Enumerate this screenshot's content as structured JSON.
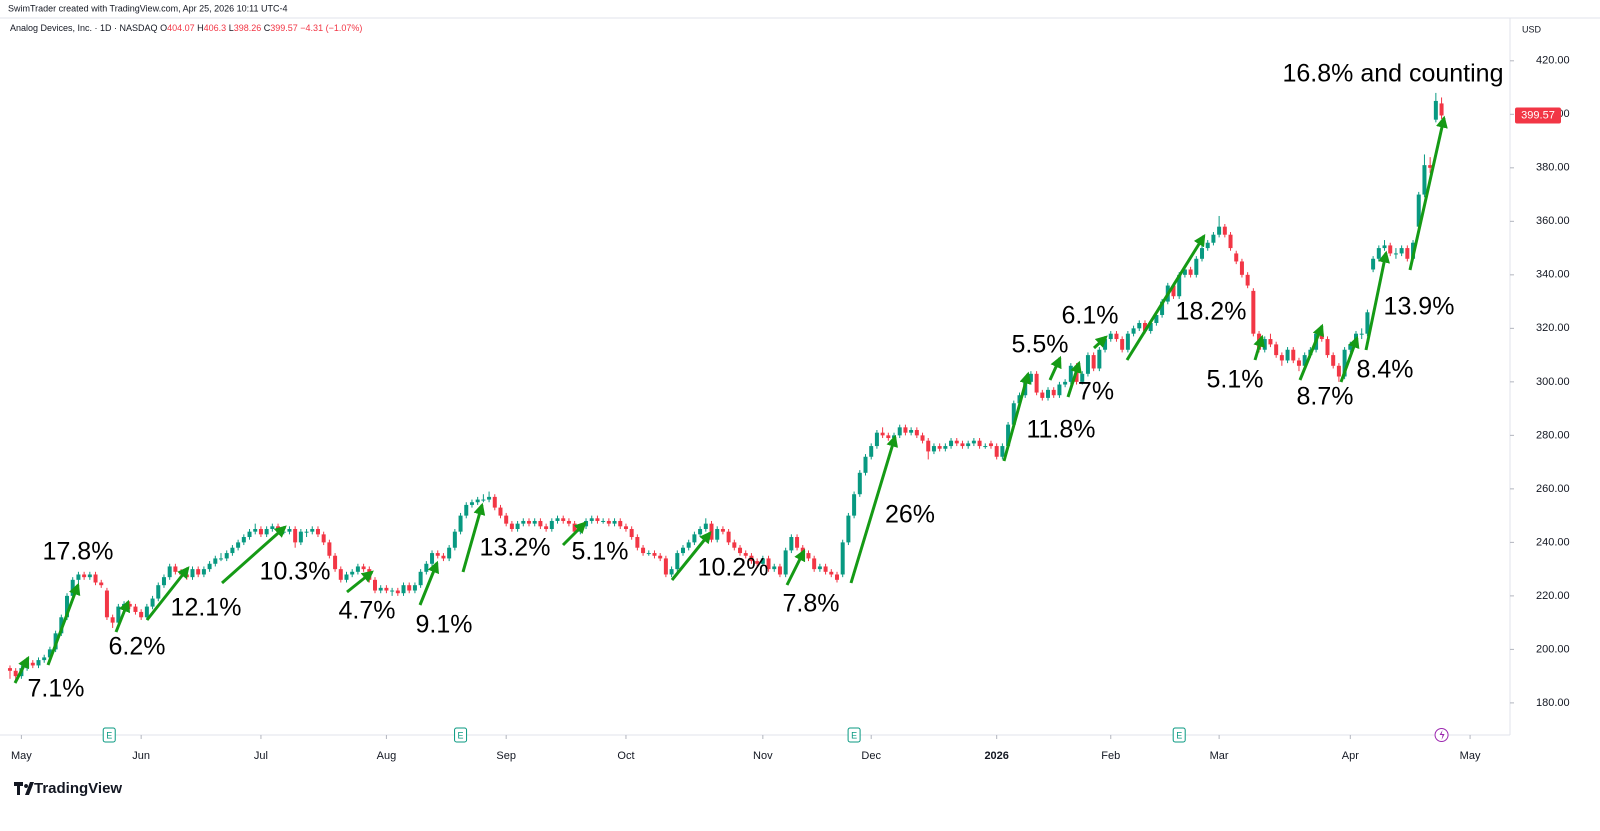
{
  "chart_data": {
    "type": "candlestick",
    "credit": "SwimTrader created with TradingView.com, Apr 25, 2026 10:11 UTC-4",
    "symbol": "Analog Devices, Inc. · 1D · NASDAQ",
    "ohlc_labels": [
      "O",
      "H",
      "L",
      "C"
    ],
    "change": "−4.31 (−1.07%)",
    "currency": "USD",
    "brand": "TradingView",
    "earnings_label": "E",
    "up_color": "#089981",
    "down_color": "#f23645",
    "arrow_color": "#159a15",
    "grid": false,
    "ylim": [
      168,
      436
    ],
    "yticks": [
      {
        "value": 180,
        "label": "180.00"
      },
      {
        "value": 200,
        "label": "200.00"
      },
      {
        "value": 220,
        "label": "220.00"
      },
      {
        "value": 240,
        "label": "240.00"
      },
      {
        "value": 260,
        "label": "260.00"
      },
      {
        "value": 280,
        "label": "280.00"
      },
      {
        "value": 300,
        "label": "300.00"
      },
      {
        "value": 320,
        "label": "320.00"
      },
      {
        "value": 340,
        "label": "340.00"
      },
      {
        "value": 360,
        "label": "360.00"
      },
      {
        "value": 380,
        "label": "380.00"
      },
      {
        "value": 400,
        "label": "400.00"
      },
      {
        "value": 420,
        "label": "420.00"
      }
    ],
    "xlim": [
      -1.75,
      263
    ],
    "xticks": [
      {
        "value": 2,
        "label": "May"
      },
      {
        "value": 23,
        "label": "Jun"
      },
      {
        "value": 44,
        "label": "Jul"
      },
      {
        "value": 66,
        "label": "Aug"
      },
      {
        "value": 87,
        "label": "Sep"
      },
      {
        "value": 108,
        "label": "Oct"
      },
      {
        "value": 132,
        "label": "Nov"
      },
      {
        "value": 151,
        "label": "Dec"
      },
      {
        "value": 173,
        "label": "2026"
      },
      {
        "value": 193,
        "label": "Feb"
      },
      {
        "value": 212,
        "label": "Mar"
      },
      {
        "value": 235,
        "label": "Apr"
      },
      {
        "value": 256,
        "label": "May"
      }
    ],
    "annotations": [
      "17.8%",
      "7.1%",
      "6.2%",
      "12.1%",
      "10.3%",
      "4.7%",
      "9.1%",
      "13.2%",
      "5.1%",
      "10.2%",
      "7.8%",
      "26%",
      "11.8%",
      "7%",
      "5.5%",
      "6.1%",
      "18.2%",
      "5.1%",
      "8.7%",
      "8.4%",
      "13.9%",
      "16.8% and counting"
    ],
    "candles": [
      [
        193,
        194,
        189,
        192
      ],
      [
        192,
        193,
        188,
        190
      ],
      [
        190,
        194,
        189,
        193
      ],
      [
        193,
        196,
        192,
        195
      ],
      [
        195,
        196,
        193,
        194
      ],
      [
        194,
        197,
        193,
        196
      ],
      [
        196,
        198,
        195,
        197
      ],
      [
        197,
        201,
        196,
        200
      ],
      [
        200,
        207,
        199,
        206
      ],
      [
        206,
        213,
        205,
        212
      ],
      [
        212,
        221,
        211,
        220
      ],
      [
        220,
        227,
        219,
        226
      ],
      [
        226,
        229,
        224,
        228
      ],
      [
        228,
        229,
        226,
        227
      ],
      [
        227,
        229,
        226,
        228
      ],
      [
        228,
        229,
        224,
        225
      ],
      [
        225,
        226,
        223,
        224
      ],
      [
        222,
        223,
        211,
        212
      ],
      [
        212,
        213,
        208,
        210
      ],
      [
        210,
        217,
        209,
        216
      ],
      [
        216,
        218,
        215,
        217
      ],
      [
        217,
        218,
        215,
        216
      ],
      [
        216,
        217,
        213,
        214
      ],
      [
        214,
        215,
        211,
        212
      ],
      [
        212,
        217,
        211,
        216
      ],
      [
        216,
        220,
        215,
        219
      ],
      [
        219,
        225,
        218,
        224
      ],
      [
        224,
        228,
        223,
        227
      ],
      [
        227,
        232,
        226,
        231
      ],
      [
        231,
        232,
        228,
        229
      ],
      [
        229,
        230,
        227,
        228
      ],
      [
        228,
        229,
        226,
        227
      ],
      [
        227,
        231,
        226,
        230
      ],
      [
        230,
        231,
        227,
        228
      ],
      [
        228,
        231,
        227,
        230
      ],
      [
        230,
        233,
        229,
        232
      ],
      [
        232,
        235,
        231,
        234
      ],
      [
        234,
        236,
        233,
        234
      ],
      [
        234,
        237,
        233,
        236
      ],
      [
        236,
        239,
        235,
        238
      ],
      [
        238,
        241,
        237,
        240
      ],
      [
        240,
        243,
        239,
        242
      ],
      [
        242,
        245,
        241,
        244
      ],
      [
        244,
        247,
        243,
        245
      ],
      [
        245,
        246,
        242,
        243
      ],
      [
        243,
        246,
        242,
        245
      ],
      [
        245,
        247,
        244,
        246
      ],
      [
        246,
        247,
        243,
        244
      ],
      [
        244,
        245,
        243,
        244
      ],
      [
        244,
        246,
        243,
        245
      ],
      [
        245,
        246,
        238,
        240
      ],
      [
        240,
        245,
        239,
        244
      ],
      [
        244,
        245,
        242,
        244
      ],
      [
        244,
        246,
        243,
        245
      ],
      [
        245,
        246,
        242,
        243
      ],
      [
        243,
        244,
        239,
        240
      ],
      [
        240,
        241,
        234,
        235
      ],
      [
        235,
        236,
        229,
        230
      ],
      [
        230,
        231,
        225,
        226
      ],
      [
        226,
        229,
        225,
        228
      ],
      [
        228,
        230,
        227,
        229
      ],
      [
        229,
        232,
        228,
        231
      ],
      [
        231,
        232,
        229,
        230
      ],
      [
        230,
        231,
        225,
        226
      ],
      [
        226,
        227,
        221,
        222
      ],
      [
        222,
        224,
        221,
        223
      ],
      [
        223,
        224,
        221,
        222
      ],
      [
        222,
        223,
        220,
        222
      ],
      [
        222,
        223,
        220,
        221
      ],
      [
        221,
        225,
        220,
        224
      ],
      [
        224,
        225,
        221,
        222
      ],
      [
        222,
        225,
        221,
        224
      ],
      [
        224,
        230,
        223,
        229
      ],
      [
        229,
        233,
        228,
        232
      ],
      [
        232,
        237,
        231,
        236
      ],
      [
        236,
        237,
        234,
        235
      ],
      [
        235,
        236,
        233,
        234
      ],
      [
        234,
        239,
        233,
        238
      ],
      [
        238,
        245,
        237,
        244
      ],
      [
        244,
        251,
        243,
        250
      ],
      [
        250,
        255,
        249,
        254
      ],
      [
        254,
        256,
        253,
        255
      ],
      [
        255,
        257,
        254,
        256
      ],
      [
        256,
        258,
        255,
        256
      ],
      [
        256,
        259,
        255,
        257
      ],
      [
        257,
        258,
        252,
        253
      ],
      [
        253,
        254,
        249,
        250
      ],
      [
        250,
        251,
        246,
        247
      ],
      [
        247,
        248,
        244,
        245
      ],
      [
        245,
        248,
        244,
        247
      ],
      [
        247,
        249,
        246,
        248
      ],
      [
        248,
        249,
        246,
        247
      ],
      [
        247,
        249,
        246,
        248
      ],
      [
        248,
        249,
        245,
        246
      ],
      [
        246,
        247,
        244,
        245
      ],
      [
        245,
        249,
        244,
        248
      ],
      [
        248,
        250,
        247,
        249
      ],
      [
        249,
        250,
        247,
        248
      ],
      [
        248,
        249,
        246,
        247
      ],
      [
        247,
        248,
        243,
        244
      ],
      [
        244,
        247,
        243,
        246
      ],
      [
        246,
        249,
        245,
        248
      ],
      [
        248,
        250,
        247,
        249
      ],
      [
        249,
        250,
        247,
        248
      ],
      [
        248,
        249,
        247,
        248
      ],
      [
        248,
        249,
        246,
        247
      ],
      [
        247,
        249,
        246,
        248
      ],
      [
        248,
        249,
        245,
        246
      ],
      [
        246,
        247,
        244,
        245
      ],
      [
        245,
        246,
        241,
        242
      ],
      [
        242,
        243,
        237,
        238
      ],
      [
        238,
        239,
        235,
        236
      ],
      [
        236,
        237,
        235,
        236
      ],
      [
        236,
        237,
        234,
        235
      ],
      [
        235,
        236,
        233,
        234
      ],
      [
        234,
        235,
        227,
        228
      ],
      [
        228,
        231,
        227,
        230
      ],
      [
        230,
        237,
        229,
        236
      ],
      [
        236,
        239,
        235,
        238
      ],
      [
        238,
        241,
        237,
        240
      ],
      [
        240,
        244,
        239,
        243
      ],
      [
        243,
        246,
        242,
        245
      ],
      [
        245,
        249,
        244,
        247
      ],
      [
        247,
        248,
        240,
        241
      ],
      [
        241,
        246,
        240,
        245
      ],
      [
        245,
        246,
        243,
        244
      ],
      [
        244,
        245,
        239,
        240
      ],
      [
        240,
        241,
        237,
        238
      ],
      [
        238,
        239,
        235,
        236
      ],
      [
        236,
        237,
        234,
        235
      ],
      [
        235,
        236,
        232,
        233
      ],
      [
        233,
        234,
        231,
        232
      ],
      [
        232,
        235,
        231,
        234
      ],
      [
        234,
        235,
        229,
        230
      ],
      [
        230,
        232,
        229,
        231
      ],
      [
        231,
        232,
        227,
        228
      ],
      [
        228,
        238,
        227,
        237
      ],
      [
        237,
        243,
        236,
        242
      ],
      [
        242,
        243,
        237,
        238
      ],
      [
        238,
        239,
        235,
        236
      ],
      [
        236,
        237,
        233,
        234
      ],
      [
        234,
        235,
        229,
        230
      ],
      [
        230,
        232,
        229,
        231
      ],
      [
        231,
        232,
        228,
        229
      ],
      [
        229,
        230,
        227,
        228
      ],
      [
        228,
        229,
        225,
        226
      ],
      [
        228,
        241,
        227,
        240
      ],
      [
        240,
        251,
        239,
        250
      ],
      [
        250,
        259,
        249,
        258
      ],
      [
        258,
        267,
        257,
        266
      ],
      [
        266,
        273,
        265,
        272
      ],
      [
        272,
        277,
        271,
        276
      ],
      [
        276,
        282,
        275,
        281
      ],
      [
        281,
        283,
        279,
        280
      ],
      [
        280,
        281,
        278,
        279
      ],
      [
        279,
        281,
        278,
        280
      ],
      [
        280,
        284,
        279,
        283
      ],
      [
        283,
        284,
        280,
        281
      ],
      [
        281,
        283,
        280,
        282
      ],
      [
        282,
        283,
        279,
        280
      ],
      [
        280,
        281,
        277,
        278
      ],
      [
        278,
        279,
        271,
        274
      ],
      [
        274,
        277,
        273,
        276
      ],
      [
        276,
        277,
        274,
        275
      ],
      [
        275,
        277,
        274,
        276
      ],
      [
        276,
        279,
        275,
        278
      ],
      [
        278,
        279,
        276,
        277
      ],
      [
        277,
        278,
        275,
        276
      ],
      [
        276,
        278,
        275,
        277
      ],
      [
        277,
        279,
        276,
        278
      ],
      [
        278,
        279,
        275,
        276
      ],
      [
        276,
        277,
        275,
        276
      ],
      [
        277,
        278,
        275,
        276
      ],
      [
        276,
        277,
        271,
        272
      ],
      [
        272,
        277,
        271,
        276
      ],
      [
        276,
        285,
        275,
        284
      ],
      [
        284,
        293,
        283,
        292
      ],
      [
        292,
        296,
        291,
        295
      ],
      [
        295,
        301,
        294,
        300
      ],
      [
        300,
        304,
        299,
        303
      ],
      [
        303,
        304,
        295,
        296
      ],
      [
        296,
        297,
        293,
        294
      ],
      [
        294,
        298,
        293,
        297
      ],
      [
        297,
        298,
        294,
        295
      ],
      [
        295,
        300,
        294,
        299
      ],
      [
        299,
        301,
        298,
        300
      ],
      [
        300,
        307,
        299,
        306
      ],
      [
        306,
        307,
        299,
        300
      ],
      [
        300,
        304,
        299,
        303
      ],
      [
        303,
        311,
        302,
        310
      ],
      [
        310,
        311,
        304,
        305
      ],
      [
        305,
        313,
        304,
        312
      ],
      [
        312,
        317,
        311,
        316
      ],
      [
        316,
        319,
        315,
        318
      ],
      [
        318,
        319,
        315,
        316
      ],
      [
        316,
        317,
        311,
        312
      ],
      [
        312,
        319,
        311,
        318
      ],
      [
        318,
        321,
        317,
        320
      ],
      [
        320,
        323,
        319,
        322
      ],
      [
        322,
        323,
        318,
        319
      ],
      [
        319,
        323,
        318,
        322
      ],
      [
        322,
        326,
        321,
        325
      ],
      [
        325,
        331,
        324,
        330
      ],
      [
        330,
        337,
        329,
        336
      ],
      [
        336,
        337,
        331,
        332
      ],
      [
        332,
        341,
        331,
        340
      ],
      [
        340,
        343,
        339,
        342
      ],
      [
        342,
        343,
        339,
        340
      ],
      [
        340,
        347,
        339,
        346
      ],
      [
        346,
        351,
        345,
        350
      ],
      [
        350,
        353,
        349,
        352
      ],
      [
        352,
        356,
        351,
        355
      ],
      [
        355,
        362,
        354,
        358
      ],
      [
        358,
        359,
        354,
        355
      ],
      [
        355,
        356,
        349,
        350
      ],
      [
        348,
        349,
        344,
        345
      ],
      [
        345,
        346,
        339,
        340
      ],
      [
        340,
        341,
        335,
        336
      ],
      [
        334,
        335,
        317,
        318
      ],
      [
        318,
        319,
        311,
        312
      ],
      [
        312,
        317,
        311,
        316
      ],
      [
        316,
        318,
        313,
        314
      ],
      [
        314,
        315,
        309,
        310
      ],
      [
        310,
        311,
        306,
        308
      ],
      [
        308,
        313,
        307,
        312
      ],
      [
        312,
        313,
        307,
        308
      ],
      [
        308,
        309,
        304,
        306
      ],
      [
        306,
        311,
        305,
        310
      ],
      [
        310,
        313,
        309,
        312
      ],
      [
        312,
        319,
        311,
        318
      ],
      [
        318,
        320,
        315,
        316
      ],
      [
        316,
        317,
        309,
        310
      ],
      [
        310,
        311,
        305,
        306
      ],
      [
        306,
        307,
        300,
        302
      ],
      [
        302,
        313,
        301,
        312
      ],
      [
        312,
        315,
        311,
        314
      ],
      [
        314,
        319,
        313,
        318
      ],
      [
        318,
        320,
        316,
        318
      ],
      [
        318,
        327,
        317,
        326
      ],
      [
        342,
        347,
        341,
        346
      ],
      [
        346,
        351,
        345,
        350
      ],
      [
        350,
        353,
        349,
        351
      ],
      [
        351,
        352,
        347,
        348
      ],
      [
        348,
        350,
        346,
        348
      ],
      [
        348,
        351,
        347,
        350
      ],
      [
        350,
        351,
        345,
        346
      ],
      [
        346,
        353,
        345,
        352
      ],
      [
        358,
        371,
        357,
        370
      ],
      [
        370,
        385,
        369,
        381
      ],
      [
        381,
        384,
        378,
        380
      ],
      [
        398,
        408,
        397,
        405
      ],
      [
        404.07,
        406.3,
        398.26,
        399.57
      ]
    ]
  }
}
